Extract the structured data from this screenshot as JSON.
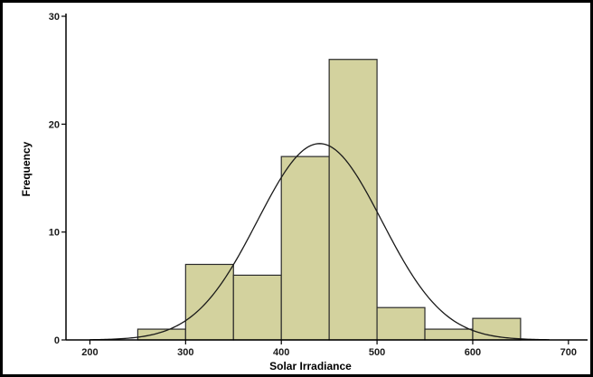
{
  "chart_data": {
    "type": "bar",
    "title": "",
    "xlabel": "Solar Irradiance",
    "ylabel": "Frequency",
    "xlim": [
      175,
      720
    ],
    "ylim": [
      0,
      30
    ],
    "xticks": [
      "200",
      "300",
      "400",
      "500",
      "600",
      "700"
    ],
    "yticks": [
      "0",
      "10",
      "20",
      "30"
    ],
    "bins": [
      {
        "start": 250,
        "end": 300,
        "value": 1
      },
      {
        "start": 300,
        "end": 350,
        "value": 7
      },
      {
        "start": 350,
        "end": 400,
        "value": 6
      },
      {
        "start": 400,
        "end": 450,
        "value": 17
      },
      {
        "start": 450,
        "end": 500,
        "value": 26
      },
      {
        "start": 500,
        "end": 550,
        "value": 3
      },
      {
        "start": 550,
        "end": 600,
        "value": 1
      },
      {
        "start": 600,
        "end": 650,
        "value": 2
      }
    ],
    "normal_curve": {
      "mean": 440,
      "sd": 65,
      "peak": 18.2
    },
    "grid": false,
    "colors": {
      "bar_fill": "#d3d29e",
      "bar_stroke": "#2b2b2b",
      "curve": "#1a1a1a",
      "axis": "#000000"
    }
  }
}
